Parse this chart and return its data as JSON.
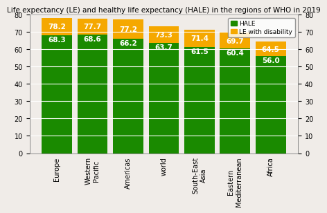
{
  "title": "Life expectancy (LE) and healthy life expectancy (HALE) in the regions of WHO in 2019",
  "categories": [
    "Europe",
    "Western\nPacific",
    "Americas",
    "world",
    "South-East\nAsia",
    "Eastern\nMediterranean",
    "Africa"
  ],
  "hale": [
    68.3,
    68.6,
    66.2,
    63.7,
    61.5,
    60.4,
    56.0
  ],
  "le_total": [
    78.2,
    77.7,
    77.2,
    73.3,
    71.4,
    69.7,
    64.5
  ],
  "hale_color": "#1a8a00",
  "le_disability_color": "#f5a800",
  "ylim": [
    0,
    80
  ],
  "yticks": [
    0,
    10,
    20,
    30,
    40,
    50,
    60,
    70,
    80
  ],
  "legend_hale": "HALE",
  "legend_le": "LE with disability",
  "title_fontsize": 7.5,
  "label_fontsize": 7.5,
  "tick_fontsize": 7.0,
  "bg_color": "#f0ece8",
  "bar_width": 0.85
}
